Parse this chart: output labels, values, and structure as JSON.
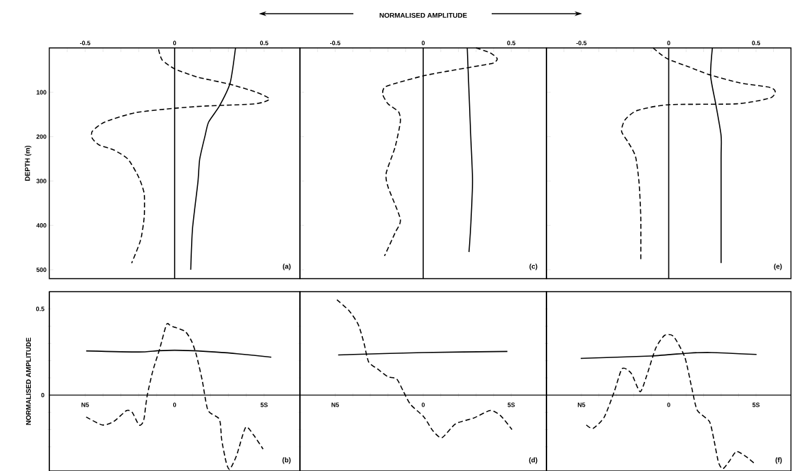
{
  "chart_data": [
    {
      "type": "line",
      "ylabel": "DEPTH (m)",
      "xlim": [
        -0.7,
        0.7
      ],
      "ylim": [
        520,
        0
      ],
      "xticks": [
        {
          "value": -0.6,
          "label": null
        },
        -0.5,
        {
          "value": -0.4,
          "label": null
        },
        {
          "value": -0.3,
          "label": null
        },
        {
          "value": -0.2,
          "label": null
        },
        {
          "value": -0.1,
          "label": null
        },
        0,
        {
          "value": 0.1,
          "label": null
        },
        {
          "value": 0.2,
          "label": null
        },
        {
          "value": 0.3,
          "label": null
        },
        {
          "value": 0.4,
          "label": null
        },
        0.5,
        {
          "value": 0.6,
          "label": null
        }
      ],
      "yticks": [
        100,
        200,
        300,
        400,
        500
      ],
      "ref_lines": [
        {
          "axis": "x",
          "value": 0
        }
      ],
      "annotations": [
        "(a)"
      ],
      "series": [
        {
          "color": "#000000",
          "line_style": "solid",
          "x": [
            0.34,
            0.31,
            0.25,
            0.19,
            0.17,
            0.14,
            0.13,
            0.1,
            0.09
          ],
          "values": [
            0,
            79,
            131,
            167,
            198,
            251,
            303,
            407,
            500
          ]
        },
        {
          "color": "#000000",
          "line_style": "dashed",
          "x": [
            -0.09,
            -0.07,
            0,
            0.13,
            0.3,
            0.45,
            0.53,
            0.45,
            0.17,
            0,
            -0.22,
            -0.39,
            -0.46,
            -0.46,
            -0.42,
            -0.34,
            -0.26,
            -0.2,
            -0.17,
            -0.17,
            -0.19,
            -0.24
          ],
          "values": [
            3,
            27,
            47,
            66,
            81,
            99,
            115,
            126,
            131,
            136,
            146,
            167,
            188,
            204,
            219,
            230,
            251,
            292,
            329,
            381,
            433,
            485
          ]
        }
      ]
    },
    {
      "type": "line",
      "xlabel": "NORMALISED AMPLITUDE",
      "tick_labels": "x",
      "xlim": [
        -0.7,
        0.7
      ],
      "ylim": [
        520,
        0
      ],
      "xticks": [
        {
          "value": -0.6,
          "label": null
        },
        -0.5,
        {
          "value": -0.4,
          "label": null
        },
        {
          "value": -0.3,
          "label": null
        },
        {
          "value": -0.2,
          "label": null
        },
        {
          "value": -0.1,
          "label": null
        },
        0,
        {
          "value": 0.1,
          "label": null
        },
        {
          "value": 0.2,
          "label": null
        },
        {
          "value": 0.3,
          "label": null
        },
        {
          "value": 0.4,
          "label": null
        },
        0.5,
        {
          "value": 0.6,
          "label": null
        }
      ],
      "yticks": [
        100,
        200,
        300,
        400,
        500
      ],
      "ref_lines": [
        {
          "axis": "x",
          "value": 0
        }
      ],
      "annotations": [
        "(c)"
      ],
      "series": [
        {
          "color": "#000000",
          "line_style": "solid",
          "x": [
            0.25,
            0.26,
            0.27,
            0.28,
            0.27,
            0.26
          ],
          "values": [
            0,
            100,
            200,
            300,
            400,
            460
          ]
        },
        {
          "color": "#000000",
          "line_style": "dashed",
          "x": [
            0.3,
            0.38,
            0.42,
            0.4,
            0.32,
            0.13,
            0,
            -0.15,
            -0.22,
            -0.23,
            -0.2,
            -0.14,
            -0.13,
            -0.16,
            -0.21,
            -0.2,
            -0.13,
            -0.16,
            -0.22
          ],
          "values": [
            0,
            11,
            24,
            34,
            40,
            53,
            63,
            79,
            89,
            105,
            126,
            144,
            167,
            224,
            282,
            313,
            386,
            417,
            469
          ]
        }
      ]
    },
    {
      "type": "line",
      "tick_labels": "x",
      "xlim": [
        -0.7,
        0.7
      ],
      "ylim": [
        520,
        0
      ],
      "xticks": [
        {
          "value": -0.6,
          "label": null
        },
        -0.5,
        {
          "value": -0.4,
          "label": null
        },
        {
          "value": -0.3,
          "label": null
        },
        {
          "value": -0.2,
          "label": null
        },
        {
          "value": -0.1,
          "label": null
        },
        0,
        {
          "value": 0.1,
          "label": null
        },
        {
          "value": 0.2,
          "label": null
        },
        {
          "value": 0.3,
          "label": null
        },
        {
          "value": 0.4,
          "label": null
        },
        0.5,
        {
          "value": 0.6,
          "label": null
        }
      ],
      "yticks": [
        100,
        200,
        300,
        400,
        500
      ],
      "ref_lines": [
        {
          "axis": "x",
          "value": 0
        }
      ],
      "annotations": [
        "(e)"
      ],
      "series": [
        {
          "color": "#000000",
          "line_style": "solid",
          "x": [
            0.25,
            0.24,
            0.27,
            0.3,
            0.3,
            0.3
          ],
          "values": [
            0,
            63,
            128,
            198,
            250,
            485
          ]
        },
        {
          "color": "#000000",
          "line_style": "dashed",
          "x": [
            -0.09,
            -0.04,
            0,
            0.11,
            0.23,
            0.41,
            0.58,
            0.61,
            0.58,
            0.39,
            0,
            -0.18,
            -0.25,
            -0.27,
            -0.23,
            -0.19,
            -0.17,
            -0.16,
            -0.16
          ],
          "values": [
            0,
            16,
            26,
            42,
            60,
            79,
            89,
            99,
            113,
            126,
            128,
            141,
            162,
            188,
            214,
            245,
            303,
            381,
            480
          ]
        }
      ]
    },
    {
      "type": "line",
      "ylabel": "NORMALISED AMPLITUDE",
      "xlim": [
        -7,
        7
      ],
      "ylim": [
        -0.44,
        0.6
      ],
      "xticks": [
        {
          "value": -5,
          "label": "N5"
        },
        {
          "value": -4,
          "label": null
        },
        {
          "value": -3,
          "label": null
        },
        {
          "value": -2,
          "label": null
        },
        {
          "value": -1,
          "label": null
        },
        0,
        {
          "value": 1,
          "label": null
        },
        {
          "value": 2,
          "label": null
        },
        {
          "value": 3,
          "label": null
        },
        {
          "value": 4,
          "label": null
        },
        {
          "value": 5,
          "label": "5S"
        }
      ],
      "yticks": [
        {
          "value": -0.3,
          "label": null
        },
        {
          "value": -0.2,
          "label": null
        },
        {
          "value": -0.1,
          "label": null
        },
        0,
        {
          "value": 0.1,
          "label": null
        },
        {
          "value": 0.2,
          "label": null
        },
        {
          "value": 0.3,
          "label": null
        },
        {
          "value": 0.4,
          "label": null
        },
        0.5
      ],
      "annotations": [
        "(b)"
      ],
      "series": [
        {
          "color": "#000000",
          "line_style": "solid",
          "x": [
            -4.94,
            -2.0,
            -0.96,
            0,
            1.09,
            2.24,
            3.5,
            5.4
          ],
          "values": [
            0.256,
            0.25,
            0.257,
            0.26,
            0.257,
            0.25,
            0.24,
            0.22
          ]
        },
        {
          "color": "#000000",
          "line_style": "dashed",
          "x": [
            -4.94,
            -4.04,
            -3.4,
            -2.69,
            -2.37,
            -1.99,
            -1.73,
            -1.54,
            -1.22,
            -0.83,
            -0.45,
            -0.19,
            0.58,
            0.96,
            1.22,
            1.54,
            1.86,
            2.5,
            2.63,
            2.88,
            3.08,
            3.46,
            3.97,
            4.42,
            4.94
          ],
          "values": [
            -0.127,
            -0.173,
            -0.153,
            -0.09,
            -0.1,
            -0.173,
            -0.147,
            -0.007,
            0.14,
            0.27,
            0.41,
            0.4,
            0.37,
            0.31,
            0.23,
            0.087,
            -0.087,
            -0.14,
            -0.26,
            -0.39,
            -0.43,
            -0.35,
            -0.187,
            -0.233,
            -0.313
          ]
        }
      ]
    },
    {
      "type": "line",
      "tick_labels": "x",
      "xlim": [
        -7,
        7
      ],
      "ylim": [
        -0.44,
        0.6
      ],
      "xticks": [
        {
          "value": -5,
          "label": "N5"
        },
        {
          "value": -4,
          "label": null
        },
        {
          "value": -3,
          "label": null
        },
        {
          "value": -2,
          "label": null
        },
        {
          "value": -1,
          "label": null
        },
        0,
        {
          "value": 1,
          "label": null
        },
        {
          "value": 2,
          "label": null
        },
        {
          "value": 3,
          "label": null
        },
        {
          "value": 4,
          "label": null
        },
        {
          "value": 5,
          "label": "5S"
        }
      ],
      "yticks": [
        {
          "value": -0.3,
          "label": null
        },
        {
          "value": -0.2,
          "label": null
        },
        {
          "value": -0.1,
          "label": null
        },
        0,
        {
          "value": 0.1,
          "label": null
        },
        {
          "value": 0.2,
          "label": null
        },
        {
          "value": 0.3,
          "label": null
        },
        {
          "value": 0.4,
          "label": null
        },
        0.5
      ],
      "annotations": [
        "(d)"
      ],
      "series": [
        {
          "color": "#000000",
          "line_style": "solid",
          "x": [
            -4.83,
            0,
            4.78
          ],
          "values": [
            0.233,
            0.247,
            0.253
          ]
        },
        {
          "color": "#000000",
          "line_style": "dashed",
          "x": [
            -4.9,
            -4.19,
            -3.68,
            -3.36,
            -3.1,
            -2.53,
            -2.01,
            -1.5,
            -1.12,
            -0.73,
            0.04,
            0.55,
            1.06,
            1.83,
            2.86,
            3.82,
            4.4,
            5.04
          ],
          "values": [
            0.553,
            0.487,
            0.407,
            0.3,
            0.193,
            0.147,
            0.107,
            0.093,
            0.02,
            -0.053,
            -0.127,
            -0.207,
            -0.247,
            -0.167,
            -0.133,
            -0.089,
            -0.12,
            -0.2
          ]
        }
      ]
    },
    {
      "type": "line",
      "tick_labels": "x",
      "xlim": [
        -7,
        7
      ],
      "ylim": [
        -0.44,
        0.6
      ],
      "xticks": [
        {
          "value": -5,
          "label": "N5"
        },
        {
          "value": -4,
          "label": null
        },
        {
          "value": -3,
          "label": null
        },
        {
          "value": -2,
          "label": null
        },
        {
          "value": -1,
          "label": null
        },
        0,
        {
          "value": 1,
          "label": null
        },
        {
          "value": 2,
          "label": null
        },
        {
          "value": 3,
          "label": null
        },
        {
          "value": 4,
          "label": null
        },
        {
          "value": 5,
          "label": "5S"
        }
      ],
      "yticks": [
        {
          "value": -0.3,
          "label": null
        },
        {
          "value": -0.2,
          "label": null
        },
        {
          "value": -0.1,
          "label": null
        },
        0,
        {
          "value": 0.1,
          "label": null
        },
        {
          "value": 0.2,
          "label": null
        },
        {
          "value": 0.3,
          "label": null
        },
        {
          "value": 0.4,
          "label": null
        },
        0.5
      ],
      "annotations": [
        "(f)"
      ],
      "series": [
        {
          "color": "#000000",
          "line_style": "solid",
          "x": [
            -5.04,
            -1.0,
            1.18,
            2.46,
            5.03
          ],
          "values": [
            0.213,
            0.227,
            0.244,
            0.247,
            0.236
          ]
        },
        {
          "color": "#000000",
          "line_style": "dashed",
          "x": [
            -4.72,
            -4.33,
            -3.69,
            -3.12,
            -2.67,
            -2.15,
            -1.64,
            -1.26,
            -0.74,
            -0.23,
            0.28,
            0.92,
            1.31,
            1.63,
            2.33,
            2.59,
            2.85,
            3.1,
            3.49,
            3.87,
            4.38,
            4.96
          ],
          "values": [
            -0.173,
            -0.193,
            -0.127,
            0.02,
            0.153,
            0.127,
            0.02,
            0.113,
            0.273,
            0.347,
            0.34,
            0.22,
            0.047,
            -0.087,
            -0.153,
            -0.26,
            -0.39,
            -0.427,
            -0.38,
            -0.327,
            -0.353,
            -0.4
          ]
        }
      ]
    }
  ]
}
